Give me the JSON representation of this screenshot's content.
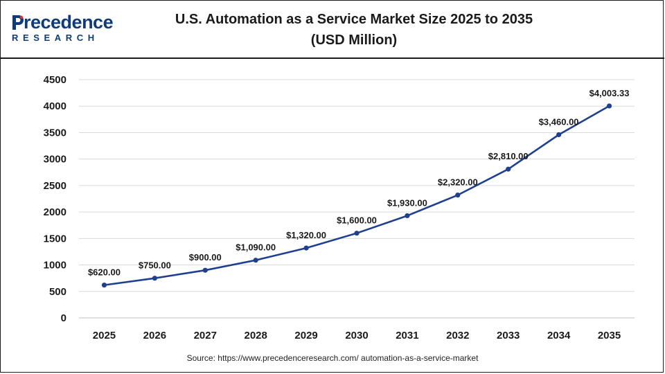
{
  "logo": {
    "top_text": "recedence",
    "bottom_text": "RESEARCH",
    "brand_color": "#0f3b79"
  },
  "header": {
    "title_line1": "U.S. Automation as a Service Market Size 2025 to 2035",
    "title_line2": "(USD Million)"
  },
  "source": "Source: https://www.precedenceresearch.com/ automation-as-a-service-market",
  "chart_data": {
    "type": "line",
    "title": "U.S. Automation as a Service Market Size 2025 to 2035",
    "subtitle": "(USD Million)",
    "xlabel": "",
    "ylabel": "",
    "categories": [
      "2025",
      "2026",
      "2027",
      "2028",
      "2029",
      "2030",
      "2031",
      "2032",
      "2033",
      "2034",
      "2035"
    ],
    "series": [
      {
        "values": [
          620.0,
          750.0,
          900.0,
          1090.0,
          1320.0,
          1600.0,
          1930.0,
          2320.0,
          2810.0,
          3460.0,
          4003.33
        ],
        "labels": [
          "$620.00",
          "$750.00",
          "$900.00",
          "$1,090.00",
          "$1,320.00",
          "$1,600.00",
          "$1,930.00",
          "$2,320.00",
          "$2,810.00",
          "$3,460.00",
          "$4,003.33"
        ]
      }
    ],
    "ylim": [
      0,
      4500
    ],
    "yticks": [
      0,
      500,
      1000,
      1500,
      2000,
      2500,
      3000,
      3500,
      4000,
      4500
    ],
    "grid": true,
    "line_color": "#1f3f8f"
  }
}
